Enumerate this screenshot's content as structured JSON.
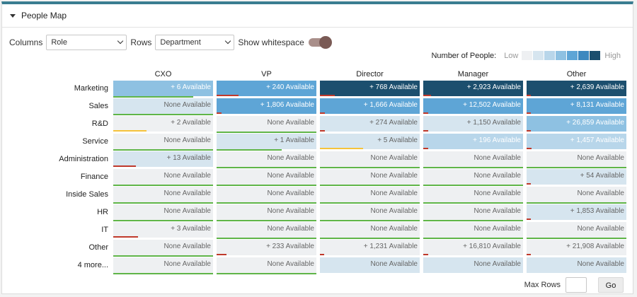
{
  "panel": {
    "title": "People Map"
  },
  "controls": {
    "columns_label": "Columns",
    "columns_value": "Role",
    "rows_label": "Rows",
    "rows_value": "Department",
    "whitespace_label": "Show whitespace",
    "whitespace_on": true
  },
  "legend": {
    "label": "Number of People:",
    "low": "Low",
    "high": "High",
    "colors": [
      "#eef0f2",
      "#d6e5ef",
      "#b8d6ea",
      "#8ec1e2",
      "#5ea5d6",
      "#3d88bf",
      "#1c4f6e"
    ]
  },
  "columns": [
    "CXO",
    "VP",
    "Director",
    "Manager",
    "Other"
  ],
  "rows": [
    {
      "label": "Marketing",
      "cells": [
        {
          "text": "+ 6 Available",
          "shade": 3,
          "underline": 0.8,
          "bar": null
        },
        {
          "text": "+ 240 Available",
          "shade": 4,
          "underline": 0,
          "bar": {
            "color": "#c0392b",
            "fraction": 0.22
          }
        },
        {
          "text": "+ 768 Available",
          "shade": 6,
          "underline": 0,
          "bar": {
            "color": "#c0392b",
            "fraction": 0.15
          }
        },
        {
          "text": "+ 2,923 Available",
          "shade": 6,
          "underline": 0,
          "bar": {
            "color": "#c0392b",
            "fraction": 0.08
          }
        },
        {
          "text": "+ 2,639 Available",
          "shade": 6,
          "underline": 0,
          "bar": {
            "color": "#c0392b",
            "fraction": 0.04
          }
        }
      ]
    },
    {
      "label": "Sales",
      "cells": [
        {
          "text": "None Available",
          "shade": 1,
          "underline": 1,
          "bar": null
        },
        {
          "text": "+ 1,806 Available",
          "shade": 4,
          "underline": 0,
          "bar": {
            "color": "#c0392b",
            "fraction": 0.05
          }
        },
        {
          "text": "+ 1,666 Available",
          "shade": 4,
          "underline": 0,
          "bar": {
            "color": "#c0392b",
            "fraction": 0.05
          }
        },
        {
          "text": "+ 12,502 Available",
          "shade": 4,
          "underline": 0,
          "bar": {
            "color": "#c0392b",
            "fraction": 0.05
          }
        },
        {
          "text": "+ 8,131 Available",
          "shade": 4,
          "underline": 0,
          "bar": {
            "color": "#c0392b",
            "fraction": 0.04
          }
        }
      ]
    },
    {
      "label": "R&D",
      "cells": [
        {
          "text": "+ 2 Available",
          "shade": 0,
          "underline": 0,
          "bar": {
            "color": "#f5c33b",
            "fraction": 0.33
          }
        },
        {
          "text": "None Available",
          "shade": 0,
          "underline": 1,
          "bar": null
        },
        {
          "text": "+ 274 Available",
          "shade": 1,
          "underline": 0,
          "bar": {
            "color": "#c0392b",
            "fraction": 0.05
          }
        },
        {
          "text": "+ 1,150 Available",
          "shade": 1,
          "underline": 0,
          "bar": {
            "color": "#c0392b",
            "fraction": 0.05
          }
        },
        {
          "text": "+ 26,859 Available",
          "shade": 3,
          "underline": 0,
          "bar": {
            "color": "#c0392b",
            "fraction": 0.04
          }
        }
      ]
    },
    {
      "label": "Service",
      "cells": [
        {
          "text": "None Available",
          "shade": 0,
          "underline": 1,
          "bar": null
        },
        {
          "text": "+ 1 Available",
          "shade": 1,
          "underline": 0.65,
          "bar": null
        },
        {
          "text": "+ 5 Available",
          "shade": 1,
          "underline": 0,
          "bar": {
            "color": "#f5c33b",
            "fraction": 0.43
          }
        },
        {
          "text": "+ 196 Available",
          "shade": 2,
          "underline": 0,
          "bar": {
            "color": "#c0392b",
            "fraction": 0.05
          }
        },
        {
          "text": "+ 1,457 Available",
          "shade": 2,
          "underline": 0,
          "bar": {
            "color": "#c0392b",
            "fraction": 0.05
          }
        }
      ]
    },
    {
      "label": "Administration",
      "cells": [
        {
          "text": "+ 13 Available",
          "shade": 1,
          "underline": 0,
          "bar": {
            "color": "#c0392b",
            "fraction": 0.23
          }
        },
        {
          "text": "None Available",
          "shade": 0,
          "underline": 1,
          "bar": null
        },
        {
          "text": "None Available",
          "shade": 0,
          "underline": 1,
          "bar": null
        },
        {
          "text": "None Available",
          "shade": 0,
          "underline": 1,
          "bar": null
        },
        {
          "text": "None Available",
          "shade": 0,
          "underline": 1,
          "bar": null
        }
      ]
    },
    {
      "label": "Finance",
      "cells": [
        {
          "text": "None Available",
          "shade": 0,
          "underline": 1,
          "bar": null
        },
        {
          "text": "None Available",
          "shade": 0,
          "underline": 1,
          "bar": null
        },
        {
          "text": "None Available",
          "shade": 0,
          "underline": 1,
          "bar": null
        },
        {
          "text": "None Available",
          "shade": 0,
          "underline": 1,
          "bar": null
        },
        {
          "text": "+ 54 Available",
          "shade": 1,
          "underline": 0,
          "bar": {
            "color": "#c0392b",
            "fraction": 0.04
          }
        }
      ]
    },
    {
      "label": "Inside Sales",
      "cells": [
        {
          "text": "None Available",
          "shade": 0,
          "underline": 1,
          "bar": null
        },
        {
          "text": "None Available",
          "shade": 0,
          "underline": 1,
          "bar": null
        },
        {
          "text": "None Available",
          "shade": 0,
          "underline": 1,
          "bar": null
        },
        {
          "text": "None Available",
          "shade": 0,
          "underline": 1,
          "bar": null
        },
        {
          "text": "None Available",
          "shade": 0,
          "underline": 1,
          "bar": null
        }
      ]
    },
    {
      "label": "HR",
      "cells": [
        {
          "text": "None Available",
          "shade": 0,
          "underline": 1,
          "bar": null
        },
        {
          "text": "None Available",
          "shade": 0,
          "underline": 1,
          "bar": null
        },
        {
          "text": "None Available",
          "shade": 0,
          "underline": 1,
          "bar": null
        },
        {
          "text": "None Available",
          "shade": 0,
          "underline": 1,
          "bar": null
        },
        {
          "text": "+ 1,853 Available",
          "shade": 1,
          "underline": 0,
          "bar": {
            "color": "#c0392b",
            "fraction": 0.04
          }
        }
      ]
    },
    {
      "label": "IT",
      "cells": [
        {
          "text": "+ 3 Available",
          "shade": 0,
          "underline": 0,
          "bar": {
            "color": "#c0392b",
            "fraction": 0.25
          }
        },
        {
          "text": "None Available",
          "shade": 0,
          "underline": 1,
          "bar": null
        },
        {
          "text": "None Available",
          "shade": 0,
          "underline": 1,
          "bar": null
        },
        {
          "text": "None Available",
          "shade": 0,
          "underline": 1,
          "bar": null
        },
        {
          "text": "None Available",
          "shade": 0,
          "underline": 1,
          "bar": null
        }
      ]
    },
    {
      "label": "Other",
      "cells": [
        {
          "text": "None Available",
          "shade": 0,
          "underline": 1,
          "bar": null
        },
        {
          "text": "+ 233 Available",
          "shade": 0,
          "underline": 0,
          "bar": {
            "color": "#c0392b",
            "fraction": 0.1
          }
        },
        {
          "text": "+ 1,231 Available",
          "shade": 0,
          "underline": 0,
          "bar": {
            "color": "#c0392b",
            "fraction": 0.04
          }
        },
        {
          "text": "+ 16,810 Available",
          "shade": 0,
          "underline": 0,
          "bar": {
            "color": "#c0392b",
            "fraction": 0.05
          }
        },
        {
          "text": "+ 21,908 Available",
          "shade": 0,
          "underline": 0,
          "bar": {
            "color": "#c0392b",
            "fraction": 0.04
          }
        }
      ]
    },
    {
      "label": "4 more...",
      "cells": [
        {
          "text": "None Available",
          "shade": 0,
          "underline": 1,
          "bar": null
        },
        {
          "text": "None Available",
          "shade": 0,
          "underline": 1,
          "bar": null
        },
        {
          "text": "None Available",
          "shade": 1,
          "underline": 0,
          "bar": null
        },
        {
          "text": "None Available",
          "shade": 1,
          "underline": 0,
          "bar": null
        },
        {
          "text": "None Available",
          "shade": 1,
          "underline": 0,
          "bar": null
        }
      ]
    }
  ],
  "footer": {
    "max_rows_label": "Max Rows",
    "max_rows_value": "",
    "go_label": "Go"
  }
}
